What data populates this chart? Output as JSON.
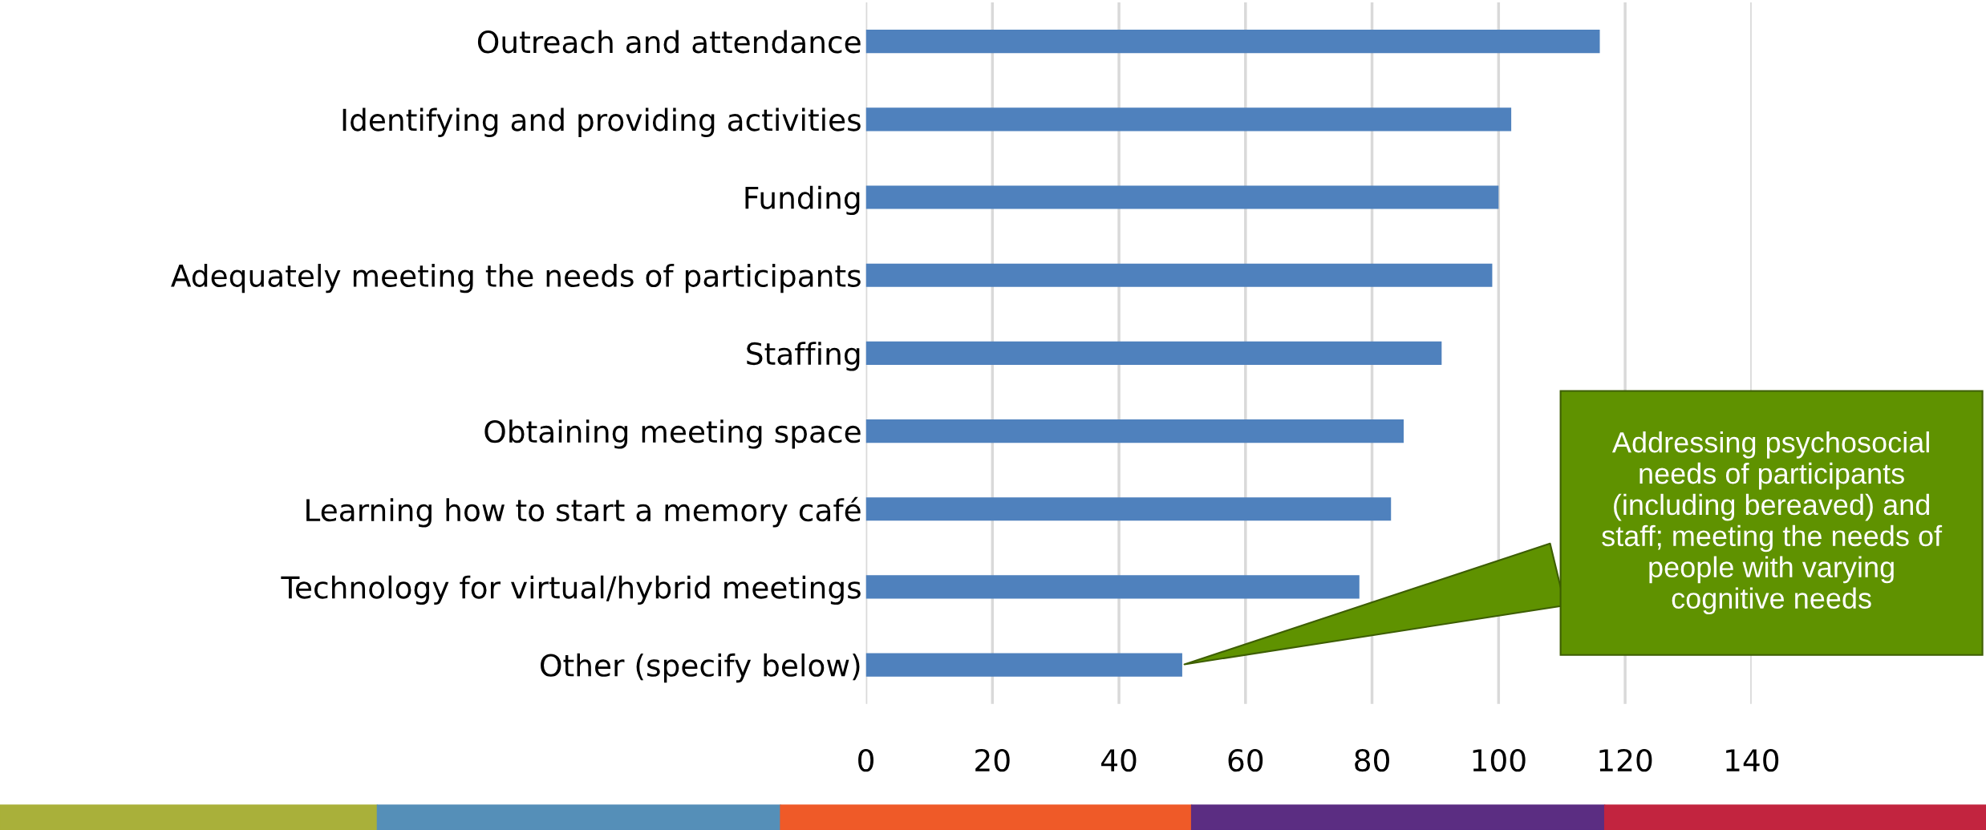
{
  "chart_data": {
    "type": "bar",
    "orientation": "horizontal",
    "categories": [
      "Outreach and attendance",
      "Identifying and providing activities",
      "Funding",
      "Adequately meeting the needs of participants",
      "Staffing",
      "Obtaining meeting space",
      "Learning how to start a memory café",
      "Technology for virtual/hybrid meetings",
      "Other (specify below)"
    ],
    "values": [
      116,
      102,
      100,
      99,
      91,
      85,
      83,
      78,
      50
    ],
    "color": "#4f81bd",
    "xlim": [
      0,
      140
    ],
    "xticks": [
      0,
      20,
      40,
      60,
      80,
      100,
      120,
      140
    ],
    "grid": "x",
    "annotations": [
      "Addressing psychosocial needs of participants (including bereaved) and staff; meeting the needs of people with varying cognitive needs"
    ]
  }
}
